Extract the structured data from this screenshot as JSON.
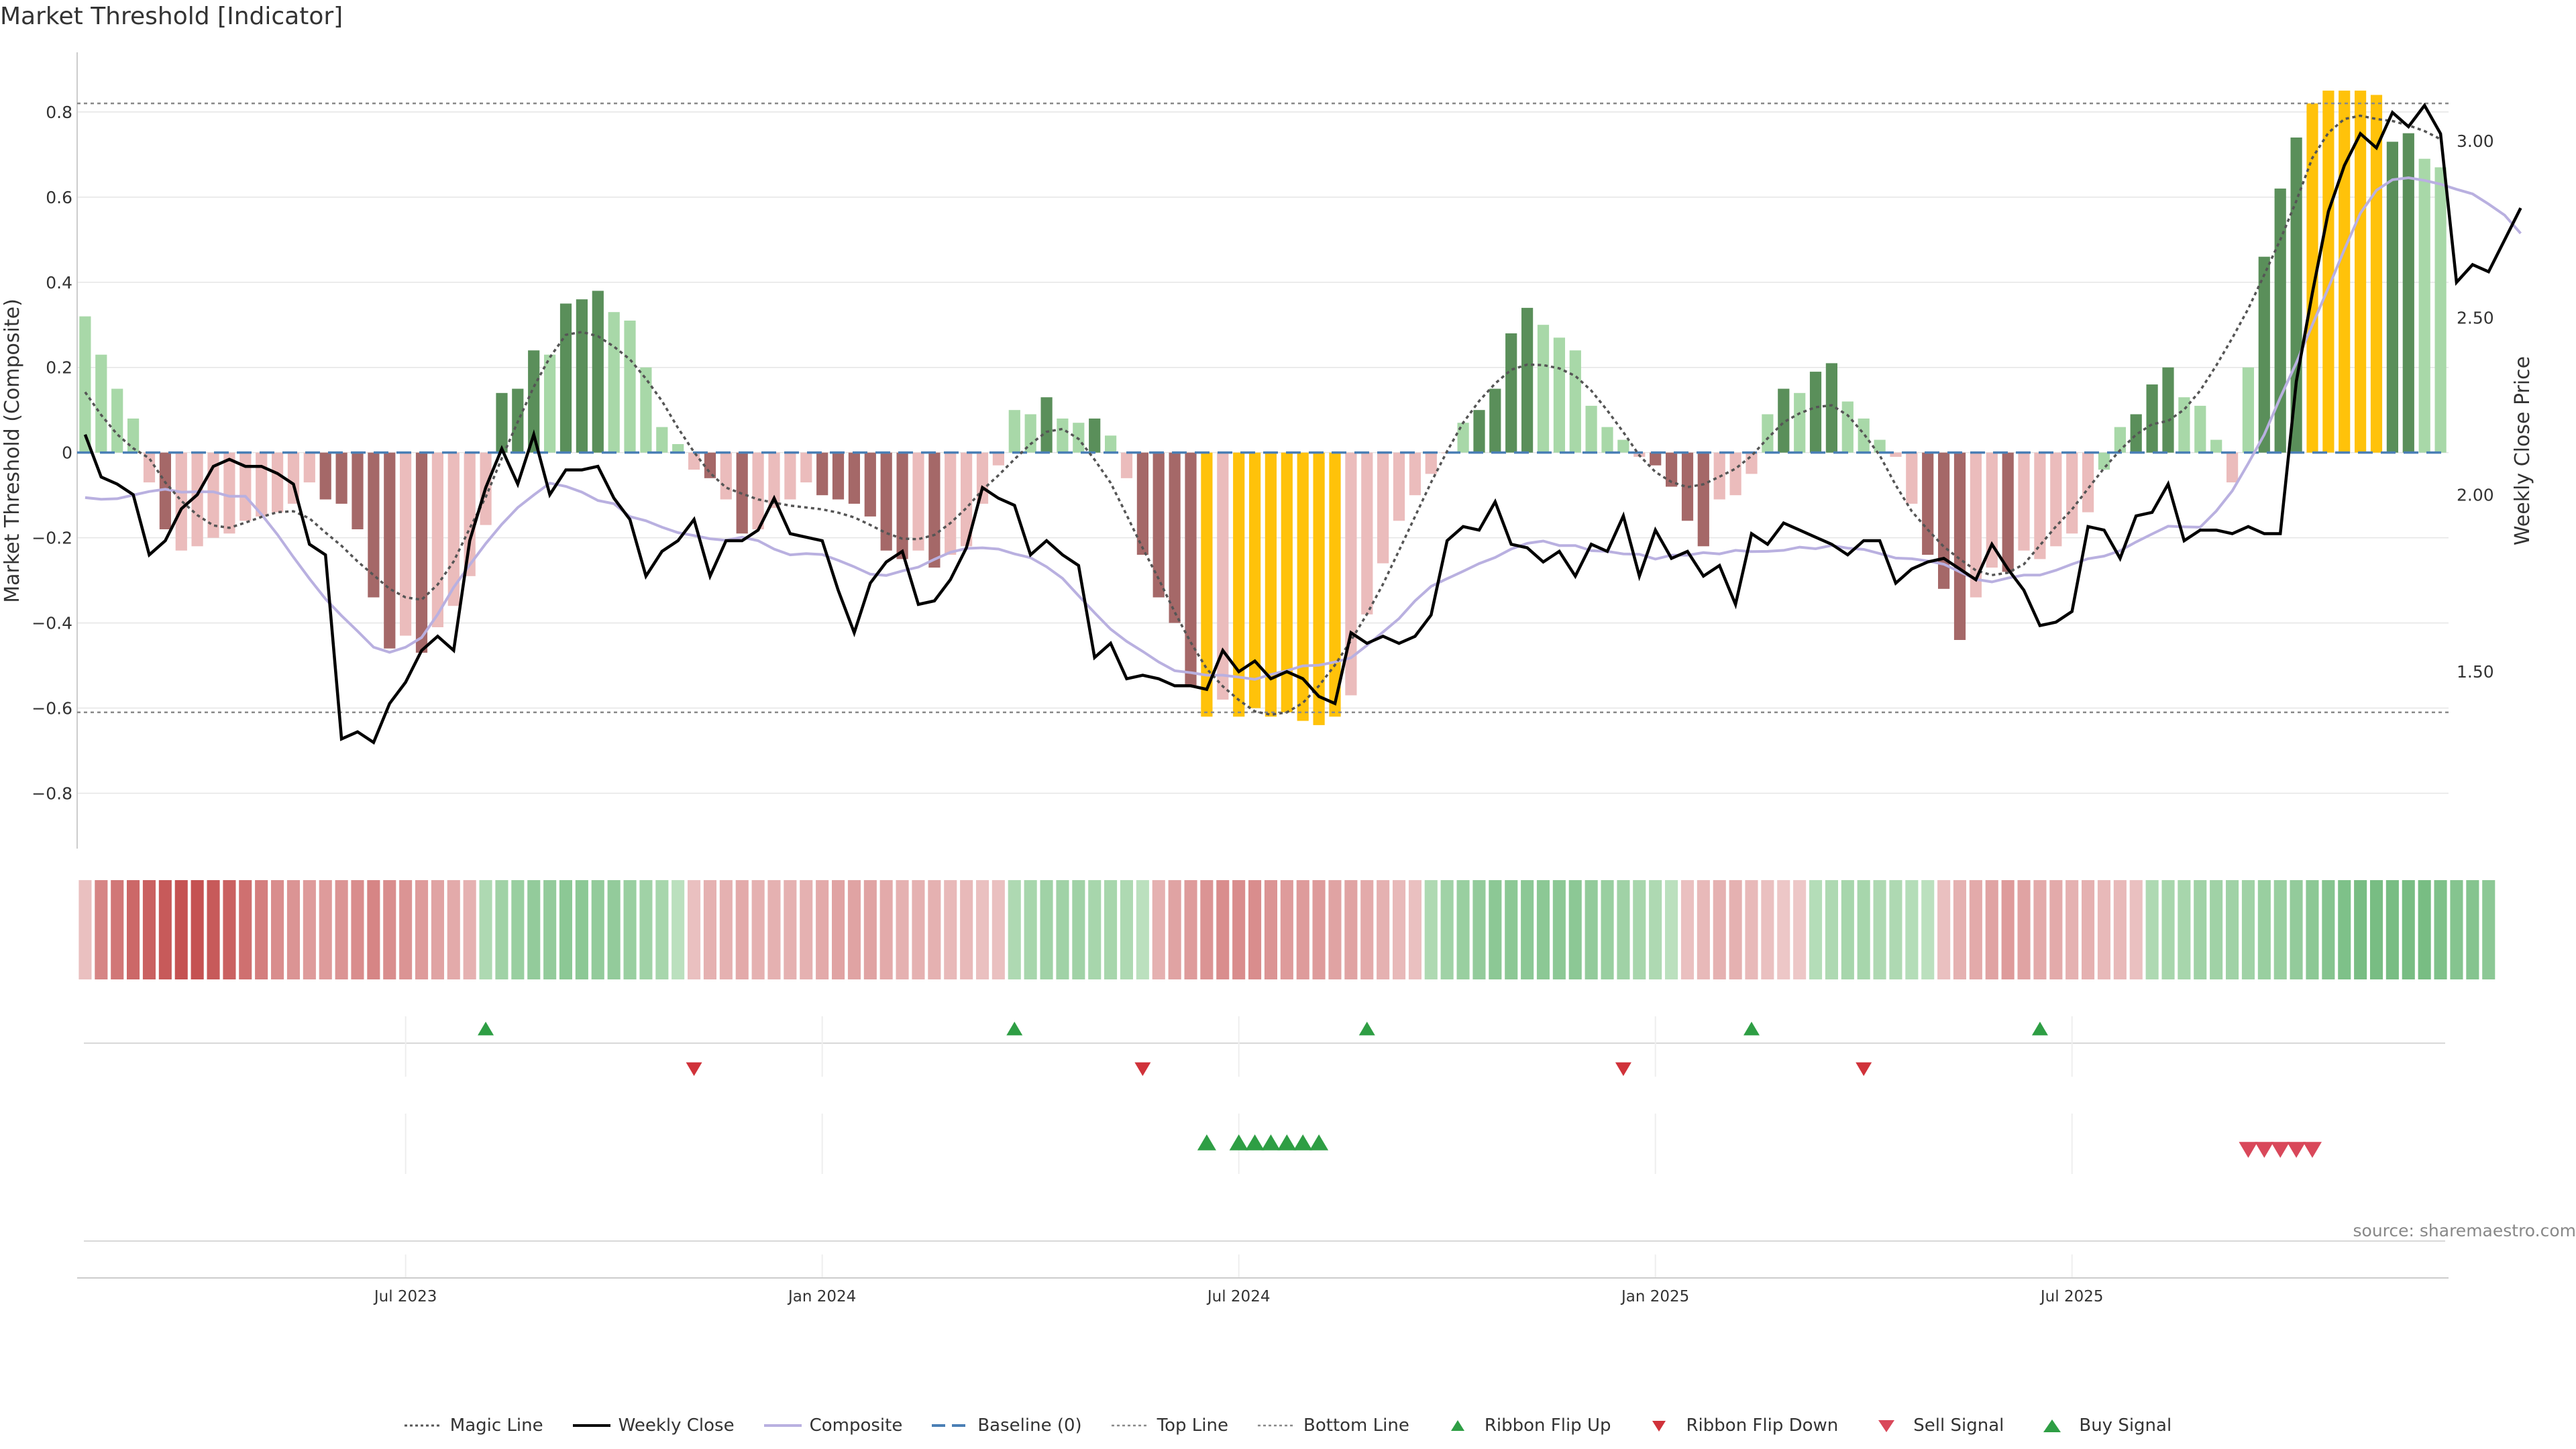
{
  "title": "Market Threshold [Indicator]",
  "source": "source: sharemaestro.com",
  "colors": {
    "magic": "#555555",
    "close": "#000000",
    "composite": "#b9b0e0",
    "baseline": "#4a7fb5",
    "refline": "#888888",
    "pos_strong": "#5a8f5a",
    "pos_light": "#a8d8a8",
    "neg_strong": "#a56868",
    "neg_light": "#ebbcbc",
    "extreme": "#ffc20a",
    "flip_up": "#2e9e44",
    "flip_down": "#d0323a",
    "sell": "#d9485a",
    "buy": "#2e9e44",
    "grid": "#e5e5e5"
  },
  "chart_data": {
    "type": "bar",
    "xlabel": "",
    "ylabel": "Market Threshold (Composite)",
    "ylabel_right": "Weekly Close Price",
    "ylim": [
      -0.93,
      0.94
    ],
    "ylim_right": [
      1.0,
      3.25
    ],
    "yticks": [
      "0.8",
      "0.6",
      "0.4",
      "0.2",
      "0",
      "−0.2",
      "−0.4",
      "−0.6",
      "−0.8"
    ],
    "ytick_values": [
      0.8,
      0.6,
      0.4,
      0.2,
      0,
      -0.2,
      -0.4,
      -0.6,
      -0.8
    ],
    "yticks_right": [
      "3.00",
      "2.50",
      "2.00",
      "1.50"
    ],
    "ytick_right_values": [
      3.0,
      2.5,
      2.0,
      1.5
    ],
    "xticks": [
      "Jul 2023",
      "Jan 2024",
      "Jul 2024",
      "Jan 2025",
      "Jul 2025"
    ],
    "xtick_index": [
      20,
      46,
      72,
      98,
      124
    ],
    "top_line": 0.82,
    "bottom_line": -0.61,
    "composite_bars": [
      0.32,
      0.23,
      0.15,
      0.08,
      -0.07,
      -0.18,
      -0.23,
      -0.22,
      -0.2,
      -0.19,
      -0.16,
      -0.15,
      -0.14,
      -0.12,
      -0.07,
      -0.11,
      -0.12,
      -0.18,
      -0.34,
      -0.46,
      -0.43,
      -0.47,
      -0.41,
      -0.36,
      -0.29,
      -0.17,
      0.14,
      0.15,
      0.24,
      0.23,
      0.35,
      0.36,
      0.38,
      0.33,
      0.31,
      0.2,
      0.06,
      0.02,
      -0.04,
      -0.06,
      -0.11,
      -0.19,
      -0.18,
      -0.13,
      -0.11,
      -0.07,
      -0.1,
      -0.11,
      -0.12,
      -0.15,
      -0.23,
      -0.25,
      -0.23,
      -0.27,
      -0.24,
      -0.22,
      -0.12,
      -0.03,
      0.1,
      0.09,
      0.13,
      0.08,
      0.07,
      0.08,
      0.04,
      -0.06,
      -0.24,
      -0.34,
      -0.4,
      -0.55,
      -0.62,
      -0.58,
      -0.62,
      -0.6,
      -0.62,
      -0.61,
      -0.63,
      -0.64,
      -0.62,
      -0.57,
      -0.38,
      -0.26,
      -0.16,
      -0.1,
      -0.05,
      0.0,
      0.07,
      0.1,
      0.15,
      0.28,
      0.34,
      0.3,
      0.27,
      0.24,
      0.11,
      0.06,
      0.03,
      -0.01,
      -0.03,
      -0.08,
      -0.16,
      -0.22,
      -0.11,
      -0.1,
      -0.05,
      0.09,
      0.15,
      0.14,
      0.19,
      0.21,
      0.12,
      0.08,
      0.03,
      -0.01,
      -0.12,
      -0.24,
      -0.32,
      -0.44,
      -0.34,
      -0.27,
      -0.28,
      -0.23,
      -0.25,
      -0.22,
      -0.19,
      -0.14,
      -0.04,
      0.06,
      0.09,
      0.16,
      0.2,
      0.13,
      0.11,
      0.03,
      -0.07,
      0.2,
      0.46,
      0.62,
      0.74,
      0.82,
      0.85,
      0.85,
      0.85,
      0.84,
      0.73,
      0.75,
      0.69,
      0.67
    ],
    "bar_style": [
      "pl",
      "pl",
      "pl",
      "pl",
      "nl",
      "ns",
      "nl",
      "nl",
      "nl",
      "nl",
      "nl",
      "nl",
      "nl",
      "nl",
      "nl",
      "ns",
      "ns",
      "ns",
      "ns",
      "ns",
      "nl",
      "ns",
      "nl",
      "nl",
      "nl",
      "nl",
      "ps",
      "ps",
      "ps",
      "pl",
      "ps",
      "ps",
      "ps",
      "pl",
      "pl",
      "pl",
      "pl",
      "pl",
      "nl",
      "ns",
      "nl",
      "ns",
      "nl",
      "nl",
      "nl",
      "nl",
      "ns",
      "ns",
      "ns",
      "ns",
      "ns",
      "ns",
      "nl",
      "ns",
      "nl",
      "nl",
      "nl",
      "nl",
      "pl",
      "pl",
      "ps",
      "pl",
      "pl",
      "ps",
      "pl",
      "nl",
      "ns",
      "ns",
      "ns",
      "ns",
      "ex",
      "nl",
      "ex",
      "ex",
      "ex",
      "ex",
      "ex",
      "ex",
      "ex",
      "nl",
      "nl",
      "nl",
      "nl",
      "nl",
      "nl",
      "nl",
      "pl",
      "ps",
      "ps",
      "ps",
      "ps",
      "pl",
      "pl",
      "pl",
      "pl",
      "pl",
      "pl",
      "nl",
      "ns",
      "ns",
      "ns",
      "ns",
      "nl",
      "nl",
      "nl",
      "pl",
      "ps",
      "pl",
      "ps",
      "ps",
      "pl",
      "pl",
      "pl",
      "nl",
      "nl",
      "ns",
      "ns",
      "ns",
      "nl",
      "nl",
      "ns",
      "nl",
      "nl",
      "nl",
      "nl",
      "nl",
      "pl",
      "pl",
      "ps",
      "ps",
      "ps",
      "pl",
      "pl",
      "pl",
      "nl",
      "pl",
      "ps",
      "ps",
      "ps",
      "ex",
      "ex",
      "ex",
      "ex",
      "ex",
      "ps",
      "ps",
      "pl",
      "pl"
    ],
    "weekly_close": [
      2.17,
      2.05,
      2.03,
      2.0,
      1.83,
      1.87,
      1.96,
      2.0,
      2.08,
      2.1,
      2.08,
      2.08,
      2.06,
      2.03,
      1.86,
      1.83,
      1.31,
      1.33,
      1.3,
      1.41,
      1.47,
      1.56,
      1.6,
      1.56,
      1.87,
      2.02,
      2.13,
      2.03,
      2.17,
      2.0,
      2.07,
      2.07,
      2.08,
      1.99,
      1.93,
      1.77,
      1.84,
      1.87,
      1.93,
      1.77,
      1.87,
      1.87,
      1.9,
      1.99,
      1.89,
      1.88,
      1.87,
      1.73,
      1.61,
      1.75,
      1.81,
      1.84,
      1.69,
      1.7,
      1.76,
      1.85,
      2.02,
      1.99,
      1.97,
      1.83,
      1.87,
      1.83,
      1.8,
      1.54,
      1.58,
      1.48,
      1.49,
      1.48,
      1.46,
      1.46,
      1.45,
      1.56,
      1.5,
      1.53,
      1.48,
      1.5,
      1.48,
      1.43,
      1.41,
      1.61,
      1.58,
      1.6,
      1.58,
      1.6,
      1.66,
      1.87,
      1.91,
      1.9,
      1.98,
      1.86,
      1.85,
      1.81,
      1.84,
      1.77,
      1.86,
      1.84,
      1.94,
      1.77,
      1.9,
      1.82,
      1.84,
      1.77,
      1.8,
      1.69,
      1.89,
      1.86,
      1.92,
      1.9,
      1.88,
      1.86,
      1.83,
      1.87,
      1.87,
      1.75,
      1.79,
      1.81,
      1.82,
      1.79,
      1.76,
      1.86,
      1.79,
      1.73,
      1.63,
      1.64,
      1.67,
      1.91,
      1.9,
      1.82,
      1.94,
      1.95,
      2.03,
      1.87,
      1.9,
      1.9,
      1.89,
      1.91,
      1.89,
      1.89,
      2.32,
      2.57,
      2.8,
      2.93,
      3.02,
      2.98,
      3.08,
      3.04,
      3.1,
      3.02,
      2.6,
      2.65,
      2.63,
      2.72,
      2.81
    ]
  },
  "ribbon": {
    "levels": [
      -0.2,
      -0.6,
      -0.7,
      -0.8,
      -0.85,
      -0.9,
      -0.95,
      -0.95,
      -0.9,
      -0.85,
      -0.75,
      -0.65,
      -0.55,
      -0.5,
      -0.45,
      -0.45,
      -0.5,
      -0.55,
      -0.6,
      -0.55,
      -0.5,
      -0.45,
      -0.4,
      -0.35,
      -0.3,
      0.3,
      0.4,
      0.45,
      0.5,
      0.5,
      0.55,
      0.55,
      0.5,
      0.5,
      0.45,
      0.4,
      0.35,
      0.2,
      -0.2,
      -0.3,
      -0.3,
      -0.35,
      -0.3,
      -0.3,
      -0.3,
      -0.3,
      -0.35,
      -0.4,
      -0.4,
      -0.4,
      -0.35,
      -0.3,
      -0.3,
      -0.3,
      -0.25,
      -0.25,
      -0.2,
      -0.2,
      0.3,
      0.35,
      0.4,
      0.4,
      0.4,
      0.35,
      0.35,
      0.3,
      0.2,
      -0.3,
      -0.4,
      -0.45,
      -0.5,
      -0.55,
      -0.55,
      -0.55,
      -0.5,
      -0.45,
      -0.45,
      -0.45,
      -0.4,
      -0.4,
      -0.35,
      -0.3,
      -0.25,
      -0.2,
      0.3,
      0.4,
      0.45,
      0.5,
      0.55,
      0.55,
      0.55,
      0.55,
      0.55,
      0.55,
      0.5,
      0.45,
      0.4,
      0.35,
      0.3,
      0.2,
      -0.2,
      -0.25,
      -0.3,
      -0.3,
      -0.25,
      -0.2,
      -0.15,
      -0.15,
      0.25,
      0.3,
      0.35,
      0.35,
      0.3,
      0.3,
      0.25,
      0.2,
      -0.2,
      -0.3,
      -0.35,
      -0.4,
      -0.45,
      -0.4,
      -0.35,
      -0.35,
      -0.3,
      -0.3,
      -0.25,
      -0.25,
      -0.2,
      0.3,
      0.35,
      0.35,
      0.4,
      0.4,
      0.4,
      0.4,
      0.45,
      0.45,
      0.5,
      0.55,
      0.6,
      0.65,
      0.7,
      0.7,
      0.7,
      0.7,
      0.7,
      0.65,
      0.6,
      0.6,
      0.55
    ]
  },
  "flips": {
    "up": [
      25,
      58,
      80,
      104,
      122
    ],
    "down": [
      38,
      66,
      96,
      111
    ]
  },
  "signals": {
    "buy": [
      70,
      72,
      73,
      74,
      75,
      76,
      77
    ],
    "sell": [
      135,
      136,
      137,
      138,
      139
    ]
  },
  "legend": [
    {
      "label": "Magic Line",
      "kind": "magic"
    },
    {
      "label": "Weekly Close",
      "kind": "close"
    },
    {
      "label": "Composite",
      "kind": "composite"
    },
    {
      "label": "Baseline (0)",
      "kind": "baseline"
    },
    {
      "label": "Top Line",
      "kind": "topline"
    },
    {
      "label": "Bottom Line",
      "kind": "bottomline"
    },
    {
      "label": "Ribbon Flip Up",
      "kind": "flipup"
    },
    {
      "label": "Ribbon Flip Down",
      "kind": "flipdown"
    },
    {
      "label": "Sell Signal",
      "kind": "sell"
    },
    {
      "label": "Buy Signal",
      "kind": "buy"
    }
  ]
}
